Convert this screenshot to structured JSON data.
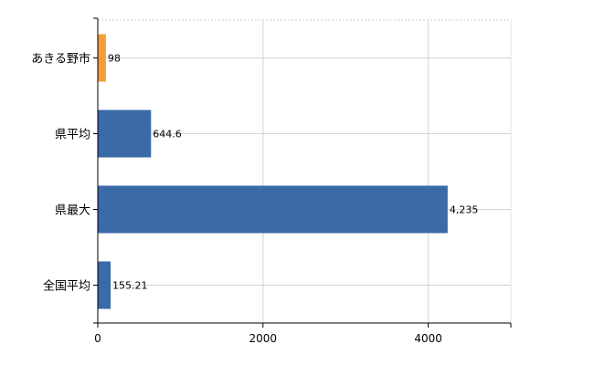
{
  "chart_data": {
    "type": "bar",
    "orientation": "horizontal",
    "categories": [
      "あきる野市",
      "県平均",
      "県最大",
      "全国平均"
    ],
    "values": [
      98,
      644.6,
      4235,
      155.21
    ],
    "data_labels": [
      "98",
      "644.6",
      "4,235",
      "155.21"
    ],
    "bar_colors": [
      "#f39c3a",
      "#3a6aa8",
      "#3a6aa8",
      "#3a6aa8"
    ],
    "x_ticks": [
      0,
      2000,
      4000
    ],
    "x_tick_labels": [
      "0",
      "2000",
      "4000"
    ],
    "xlim": [
      0,
      5000
    ],
    "grid": true,
    "title": "",
    "xlabel": "",
    "ylabel": ""
  }
}
